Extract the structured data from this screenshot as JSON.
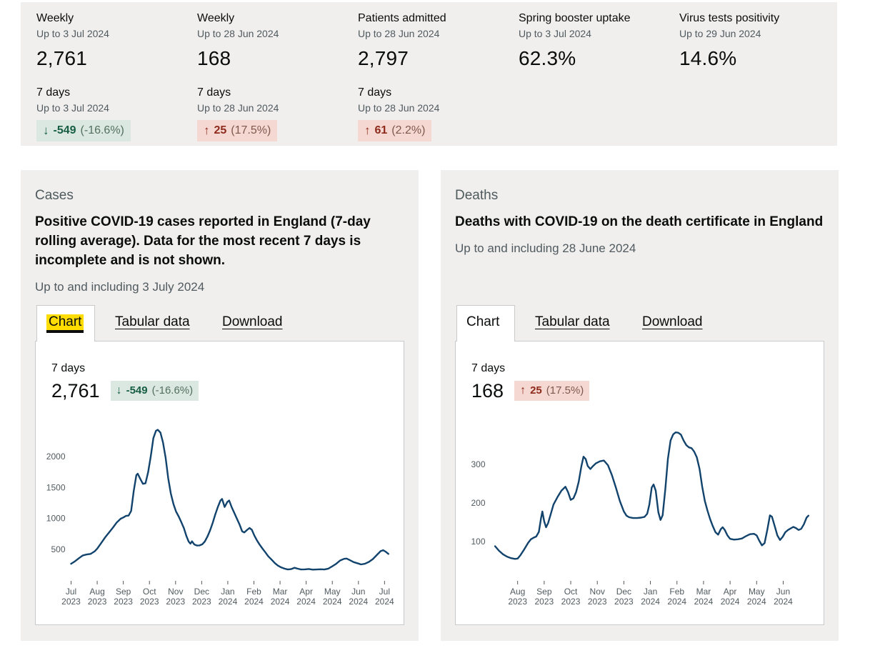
{
  "colors": {
    "panel_bg": "#f0efee",
    "line": "#12436d",
    "axis_text": "#505a5f",
    "good_bg": "#dbe8e1",
    "good_fg": "#175e45",
    "bad_bg": "#f6d8d2",
    "bad_fg": "#8e2a1b",
    "tab_highlight": "#ffdd00"
  },
  "summary": {
    "metrics": [
      {
        "title": "Weekly",
        "date": "Up to 3 Jul 2024",
        "value": "2,761"
      },
      {
        "title": "Weekly",
        "date": "Up to 28 Jun 2024",
        "value": "168"
      },
      {
        "title": "Patients admitted",
        "date": "Up to 28 Jun 2024",
        "value": "2,797"
      },
      {
        "title": "Spring booster uptake",
        "date": "Up to 3 Jul 2024",
        "value": "62.3%"
      },
      {
        "title": "Virus tests positivity",
        "date": "Up to 29 Jun 2024",
        "value": "14.6%"
      }
    ],
    "changes": [
      {
        "label": "7 days",
        "date": "Up to 3 Jul 2024",
        "arrow": "↓",
        "value": "-549",
        "percent": "(-16.6%)",
        "tone": "good"
      },
      {
        "label": "7 days",
        "date": "Up to 28 Jun 2024",
        "arrow": "↑",
        "value": "25",
        "percent": "(17.5%)",
        "tone": "bad"
      },
      {
        "label": "7 days",
        "date": "Up to 28 Jun 2024",
        "arrow": "↑",
        "value": "61",
        "percent": "(2.2%)",
        "tone": "bad"
      }
    ]
  },
  "cards": [
    {
      "label": "Cases",
      "heading": "Positive COVID-19 cases reported in England (7-day rolling average). Data for the most recent 7 days is incomplete and is not shown.",
      "date": "Up to and including 3 July 2024",
      "tabs": {
        "chart": "Chart",
        "tabular": "Tabular data",
        "download": "Download"
      },
      "stat": {
        "label": "7 days",
        "value": "2,761",
        "arrow": "↓",
        "change": "-549",
        "percent": "(-16.6%)",
        "tone": "good"
      }
    },
    {
      "label": "Deaths",
      "heading": "Deaths with COVID-19 on the death certificate in England",
      "date": "Up to and including 28 June 2024",
      "tabs": {
        "chart": "Chart",
        "tabular": "Tabular data",
        "download": "Download"
      },
      "stat": {
        "label": "7 days",
        "value": "168",
        "arrow": "↑",
        "change": "25",
        "percent": "(17.5%)",
        "tone": "bad"
      }
    }
  ],
  "chart_data": [
    {
      "type": "line",
      "name": "cases-7-day-rolling-average",
      "line_color": "#12436d",
      "ylim": [
        0,
        2500
      ],
      "yticks": [
        500,
        1000,
        1500,
        2000
      ],
      "xlim": [
        0,
        12.25
      ],
      "xticks": [
        {
          "x": 0,
          "month": "Jul",
          "year": "2023"
        },
        {
          "x": 1,
          "month": "Aug",
          "year": "2023"
        },
        {
          "x": 2,
          "month": "Sep",
          "year": "2023"
        },
        {
          "x": 3,
          "month": "Oct",
          "year": "2023"
        },
        {
          "x": 4,
          "month": "Nov",
          "year": "2023"
        },
        {
          "x": 5,
          "month": "Dec",
          "year": "2023"
        },
        {
          "x": 6,
          "month": "Jan",
          "year": "2024"
        },
        {
          "x": 7,
          "month": "Feb",
          "year": "2024"
        },
        {
          "x": 8,
          "month": "Mar",
          "year": "2024"
        },
        {
          "x": 9,
          "month": "Apr",
          "year": "2024"
        },
        {
          "x": 10,
          "month": "May",
          "year": "2024"
        },
        {
          "x": 11,
          "month": "Jun",
          "year": "2024"
        },
        {
          "x": 12,
          "month": "Jul",
          "year": "2024"
        }
      ],
      "points": [
        [
          0,
          265
        ],
        [
          0.15,
          305
        ],
        [
          0.3,
          355
        ],
        [
          0.45,
          400
        ],
        [
          0.6,
          415
        ],
        [
          0.75,
          425
        ],
        [
          0.9,
          465
        ],
        [
          1,
          510
        ],
        [
          1.15,
          600
        ],
        [
          1.3,
          690
        ],
        [
          1.45,
          770
        ],
        [
          1.6,
          850
        ],
        [
          1.75,
          935
        ],
        [
          1.9,
          995
        ],
        [
          2,
          1015
        ],
        [
          2.1,
          1040
        ],
        [
          2.2,
          1045
        ],
        [
          2.3,
          1120
        ],
        [
          2.4,
          1450
        ],
        [
          2.5,
          1700
        ],
        [
          2.55,
          1725
        ],
        [
          2.65,
          1640
        ],
        [
          2.75,
          1560
        ],
        [
          2.85,
          1570
        ],
        [
          2.95,
          1750
        ],
        [
          3.05,
          2000
        ],
        [
          3.15,
          2300
        ],
        [
          3.25,
          2420
        ],
        [
          3.32,
          2435
        ],
        [
          3.42,
          2390
        ],
        [
          3.52,
          2230
        ],
        [
          3.62,
          1980
        ],
        [
          3.72,
          1650
        ],
        [
          3.82,
          1400
        ],
        [
          3.92,
          1230
        ],
        [
          4.02,
          1110
        ],
        [
          4.12,
          1030
        ],
        [
          4.22,
          940
        ],
        [
          4.32,
          840
        ],
        [
          4.42,
          710
        ],
        [
          4.5,
          625
        ],
        [
          4.57,
          590
        ],
        [
          4.63,
          628
        ],
        [
          4.72,
          578
        ],
        [
          4.82,
          560
        ],
        [
          4.92,
          562
        ],
        [
          5.02,
          580
        ],
        [
          5.12,
          625
        ],
        [
          5.22,
          705
        ],
        [
          5.32,
          805
        ],
        [
          5.42,
          925
        ],
        [
          5.52,
          1065
        ],
        [
          5.62,
          1185
        ],
        [
          5.72,
          1290
        ],
        [
          5.78,
          1315
        ],
        [
          5.88,
          1185
        ],
        [
          5.98,
          1265
        ],
        [
          6.05,
          1290
        ],
        [
          6.15,
          1180
        ],
        [
          6.3,
          1040
        ],
        [
          6.45,
          900
        ],
        [
          6.55,
          790
        ],
        [
          6.63,
          772
        ],
        [
          6.73,
          810
        ],
        [
          6.83,
          845
        ],
        [
          6.92,
          815
        ],
        [
          7.02,
          720
        ],
        [
          7.12,
          640
        ],
        [
          7.22,
          575
        ],
        [
          7.32,
          515
        ],
        [
          7.42,
          460
        ],
        [
          7.55,
          385
        ],
        [
          7.68,
          330
        ],
        [
          7.8,
          275
        ],
        [
          7.92,
          235
        ],
        [
          8.05,
          205
        ],
        [
          8.18,
          185
        ],
        [
          8.3,
          172
        ],
        [
          8.42,
          178
        ],
        [
          8.55,
          200
        ],
        [
          8.68,
          185
        ],
        [
          8.8,
          172
        ],
        [
          8.95,
          175
        ],
        [
          9.1,
          180
        ],
        [
          9.25,
          170
        ],
        [
          9.4,
          173
        ],
        [
          9.55,
          176
        ],
        [
          9.7,
          172
        ],
        [
          9.85,
          186
        ],
        [
          10,
          225
        ],
        [
          10.15,
          265
        ],
        [
          10.3,
          318
        ],
        [
          10.45,
          345
        ],
        [
          10.55,
          350
        ],
        [
          10.68,
          322
        ],
        [
          10.82,
          292
        ],
        [
          11,
          268
        ],
        [
          11.1,
          255
        ],
        [
          11.25,
          265
        ],
        [
          11.4,
          295
        ],
        [
          11.55,
          340
        ],
        [
          11.7,
          405
        ],
        [
          11.85,
          470
        ],
        [
          11.95,
          485
        ],
        [
          12.05,
          458
        ],
        [
          12.15,
          425
        ]
      ]
    },
    {
      "type": "line",
      "name": "deaths-with-covid-on-certificate",
      "line_color": "#12436d",
      "ylim": [
        0,
        400
      ],
      "yticks": [
        100,
        200,
        300
      ],
      "xlim": [
        0,
        12.05
      ],
      "xticks": [
        {
          "x": 1,
          "month": "Aug",
          "year": "2023"
        },
        {
          "x": 2,
          "month": "Sep",
          "year": "2023"
        },
        {
          "x": 3,
          "month": "Oct",
          "year": "2023"
        },
        {
          "x": 4,
          "month": "Nov",
          "year": "2023"
        },
        {
          "x": 5,
          "month": "Dec",
          "year": "2023"
        },
        {
          "x": 6,
          "month": "Jan",
          "year": "2024"
        },
        {
          "x": 7,
          "month": "Feb",
          "year": "2024"
        },
        {
          "x": 8,
          "month": "Mar",
          "year": "2024"
        },
        {
          "x": 9,
          "month": "Apr",
          "year": "2024"
        },
        {
          "x": 10,
          "month": "May",
          "year": "2024"
        },
        {
          "x": 11,
          "month": "Jun",
          "year": "2024"
        }
      ],
      "points": [
        [
          0.15,
          88
        ],
        [
          0.3,
          76
        ],
        [
          0.45,
          67
        ],
        [
          0.6,
          61
        ],
        [
          0.75,
          57
        ],
        [
          0.9,
          55
        ],
        [
          1,
          56
        ],
        [
          1.1,
          64
        ],
        [
          1.25,
          80
        ],
        [
          1.4,
          97
        ],
        [
          1.5,
          106
        ],
        [
          1.6,
          110
        ],
        [
          1.7,
          113
        ],
        [
          1.8,
          125
        ],
        [
          1.88,
          160
        ],
        [
          1.93,
          178
        ],
        [
          2,
          152
        ],
        [
          2.07,
          137
        ],
        [
          2.15,
          148
        ],
        [
          2.25,
          172
        ],
        [
          2.35,
          196
        ],
        [
          2.5,
          215
        ],
        [
          2.65,
          232
        ],
        [
          2.8,
          242
        ],
        [
          2.9,
          228
        ],
        [
          3,
          208
        ],
        [
          3.1,
          212
        ],
        [
          3.2,
          228
        ],
        [
          3.3,
          255
        ],
        [
          3.4,
          295
        ],
        [
          3.48,
          320
        ],
        [
          3.56,
          314
        ],
        [
          3.64,
          296
        ],
        [
          3.74,
          288
        ],
        [
          3.84,
          296
        ],
        [
          3.95,
          303
        ],
        [
          4.1,
          308
        ],
        [
          4.25,
          310
        ],
        [
          4.4,
          298
        ],
        [
          4.55,
          272
        ],
        [
          4.7,
          240
        ],
        [
          4.85,
          205
        ],
        [
          5,
          178
        ],
        [
          5.1,
          167
        ],
        [
          5.2,
          163
        ],
        [
          5.35,
          161
        ],
        [
          5.5,
          161
        ],
        [
          5.65,
          162
        ],
        [
          5.78,
          164
        ],
        [
          5.88,
          172
        ],
        [
          5.96,
          196
        ],
        [
          6.05,
          240
        ],
        [
          6.12,
          248
        ],
        [
          6.2,
          232
        ],
        [
          6.3,
          176
        ],
        [
          6.38,
          156
        ],
        [
          6.46,
          168
        ],
        [
          6.56,
          235
        ],
        [
          6.66,
          315
        ],
        [
          6.76,
          362
        ],
        [
          6.86,
          378
        ],
        [
          6.95,
          383
        ],
        [
          7.05,
          382
        ],
        [
          7.15,
          377
        ],
        [
          7.25,
          362
        ],
        [
          7.35,
          350
        ],
        [
          7.45,
          344
        ],
        [
          7.55,
          342
        ],
        [
          7.65,
          333
        ],
        [
          7.75,
          318
        ],
        [
          7.85,
          288
        ],
        [
          7.95,
          242
        ],
        [
          8.05,
          205
        ],
        [
          8.15,
          180
        ],
        [
          8.25,
          158
        ],
        [
          8.35,
          140
        ],
        [
          8.45,
          124
        ],
        [
          8.55,
          118
        ],
        [
          8.65,
          132
        ],
        [
          8.72,
          137
        ],
        [
          8.8,
          130
        ],
        [
          8.9,
          116
        ],
        [
          9,
          107
        ],
        [
          9.15,
          105
        ],
        [
          9.3,
          106
        ],
        [
          9.45,
          108
        ],
        [
          9.6,
          114
        ],
        [
          9.75,
          119
        ],
        [
          9.9,
          120
        ],
        [
          10,
          116
        ],
        [
          10.1,
          102
        ],
        [
          10.2,
          90
        ],
        [
          10.3,
          96
        ],
        [
          10.4,
          130
        ],
        [
          10.5,
          168
        ],
        [
          10.58,
          164
        ],
        [
          10.68,
          140
        ],
        [
          10.78,
          116
        ],
        [
          10.88,
          104
        ],
        [
          10.98,
          112
        ],
        [
          11.08,
          124
        ],
        [
          11.18,
          130
        ],
        [
          11.28,
          134
        ],
        [
          11.38,
          138
        ],
        [
          11.48,
          135
        ],
        [
          11.58,
          130
        ],
        [
          11.68,
          133
        ],
        [
          11.78,
          145
        ],
        [
          11.88,
          162
        ],
        [
          11.95,
          167
        ]
      ]
    }
  ]
}
